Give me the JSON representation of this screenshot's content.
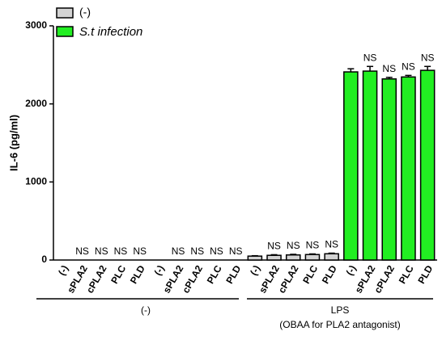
{
  "chart_data": {
    "type": "bar",
    "ylabel": "IL-6 (pg/ml)",
    "ylim": [
      0,
      3000
    ],
    "yticks": [
      0,
      1000,
      2000,
      3000
    ],
    "groups": [
      {
        "label": "(-)",
        "categories": [
          "(-)",
          "sPLA2",
          "cPLA2",
          "PLC",
          "PLD",
          "(-)",
          "sPLA2",
          "cPLA2",
          "PLC",
          "PLD"
        ]
      },
      {
        "label": "LPS",
        "sublabel": "(OBAA for PLA2 antagonist)",
        "categories": [
          "(-)",
          "sPLA2",
          "cPLA2",
          "PLC",
          "PLD",
          "(-)",
          "sPLA2",
          "cPLA2",
          "PLC",
          "PLD"
        ]
      }
    ],
    "series": [
      {
        "name": "(-)",
        "color": "#d3d3d3",
        "values": [
          0,
          0,
          0,
          0,
          0,
          null,
          null,
          null,
          null,
          null,
          50,
          60,
          65,
          70,
          80,
          null,
          null,
          null,
          null,
          null
        ],
        "errors": [
          null,
          null,
          null,
          null,
          null,
          null,
          null,
          null,
          null,
          null,
          5,
          8,
          8,
          8,
          8,
          null,
          null,
          null,
          null,
          null
        ]
      },
      {
        "name": "S.t infection",
        "color": "#22ee22",
        "values": [
          null,
          null,
          null,
          null,
          null,
          0,
          0,
          0,
          0,
          0,
          null,
          null,
          null,
          null,
          null,
          2410,
          2420,
          2320,
          2345,
          2430
        ],
        "errors": [
          null,
          null,
          null,
          null,
          null,
          null,
          null,
          null,
          null,
          null,
          null,
          null,
          null,
          null,
          null,
          40,
          60,
          20,
          20,
          50
        ]
      }
    ],
    "significance_labels": [
      null,
      "NS",
      "NS",
      "NS",
      "NS",
      null,
      "NS",
      "NS",
      "NS",
      "NS",
      null,
      "NS",
      "NS",
      "NS",
      "NS",
      null,
      "NS",
      "NS",
      "NS",
      "NS"
    ]
  }
}
